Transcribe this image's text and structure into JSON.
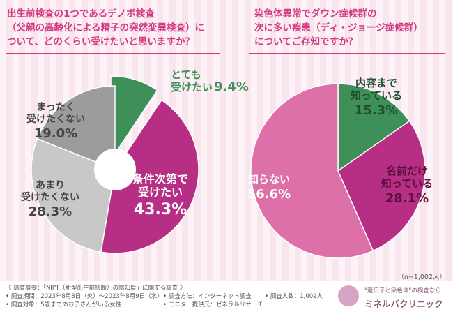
{
  "titles": {
    "left": "出生前検査の1つであるデノボ検査\n（父親の高齢化による精子の突然変異検査）に\nついて、どのくらい受けたいと思いますか？",
    "right": "染色体異常でダウン症候群の\n次に多い疾患（ディ・ジョージ症候群）\nについてご存知ですか？"
  },
  "sample_size": "（n=1,002人）",
  "footer": {
    "line1": "《 調査概要：「NIPT（新型出生前診断）の認知度」に関する調査 》",
    "period": "• 調査期間：2023年8月8日（火）～2023年8月9日（水）",
    "method": "• 調査方法：インターネット調査",
    "count": "• 調査人数：1,002人",
    "target": "• 調査対象：5歳までのお子さんがいる女性",
    "provider": "• モニター提供元：ゼネラルリサーチ",
    "logo_tagline": "\"遺伝子と染色体\"の検査なら",
    "logo_name": "ミネルバクリニック"
  },
  "colors": {
    "green": "#3f8f58",
    "magenta": "#b62f84",
    "dark_gray": "#9c9c9c",
    "light_gray": "#c8c8c8",
    "pink": "#de70a9"
  },
  "chart_data": [
    {
      "type": "pie",
      "title": "出生前検査の1つであるデノボ検査（父親の高齢化による精子の突然変異検査）について、どのくらい受けたいと思いますか？",
      "donut": true,
      "categories": [
        "とても受けたい",
        "条件次第で受けたい",
        "あまり受けたくない",
        "まったく受けたくない"
      ],
      "values": [
        9.4,
        43.3,
        28.3,
        19.0
      ],
      "labels": [
        {
          "lines": [
            "とても",
            "受けたい"
          ],
          "value_text": "9.4%",
          "color": "#3f8f58"
        },
        {
          "lines": [
            "条件次第で",
            "受けたい"
          ],
          "value_text": "43.3%",
          "color": "#ffffff"
        },
        {
          "lines": [
            "あまり",
            "受けたくない"
          ],
          "value_text": "28.3%",
          "color": "#444444"
        },
        {
          "lines": [
            "まったく",
            "受けたくない"
          ],
          "value_text": "19.0%",
          "color": "#444444"
        }
      ],
      "slice_colors": [
        "#3f8f58",
        "#b62f84",
        "#c8c8c8",
        "#9c9c9c"
      ]
    },
    {
      "type": "pie",
      "title": "染色体異常でダウン症候群の次に多い疾患（ディ・ジョージ症候群）についてご存知ですか？",
      "donut": false,
      "categories": [
        "内容まで知っている",
        "名前だけ知っている",
        "知らない"
      ],
      "values": [
        15.3,
        28.1,
        56.6
      ],
      "labels": [
        {
          "lines": [
            "内容まで",
            "知っている"
          ],
          "value_text": "15.3%",
          "color": "#1f4f2e"
        },
        {
          "lines": [
            "名前だけ",
            "知っている"
          ],
          "value_text": "28.1%",
          "color": "#5a0f3c"
        },
        {
          "lines": [
            "知らない"
          ],
          "value_text": "56.6%",
          "color": "#ffffff"
        }
      ],
      "slice_colors": [
        "#3f8f58",
        "#b62f84",
        "#de70a9"
      ]
    }
  ]
}
